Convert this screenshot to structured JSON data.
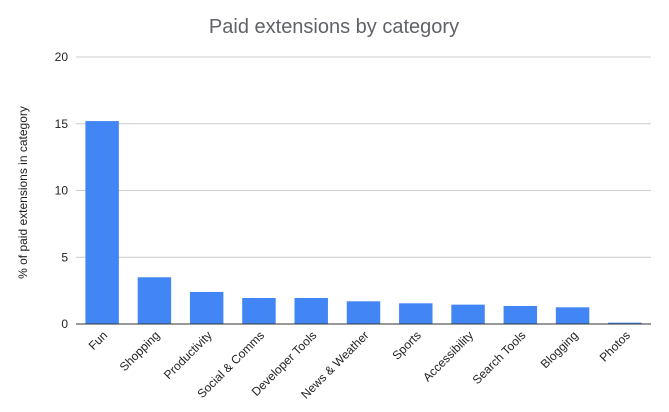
{
  "chart_data": {
    "type": "bar",
    "title": "Paid extensions by category",
    "xlabel": "",
    "ylabel": "% of paid extensions in category",
    "categories": [
      "Fun",
      "Shopping",
      "Productivity",
      "Social & Comms",
      "Developer Tools",
      "News & Weather",
      "Sports",
      "Accessibility",
      "Search Tools",
      "Blogging",
      "Photos"
    ],
    "values": [
      15.2,
      3.5,
      2.4,
      1.95,
      1.95,
      1.7,
      1.55,
      1.45,
      1.35,
      1.25,
      0.1
    ],
    "ylim": [
      0,
      20
    ],
    "yticks": [
      "0",
      "5",
      "10",
      "15",
      "20"
    ],
    "grid": true,
    "legend": "none",
    "bar_color": "#4285f4",
    "grid_color": "#cccccc",
    "axis_color": "#333333"
  }
}
